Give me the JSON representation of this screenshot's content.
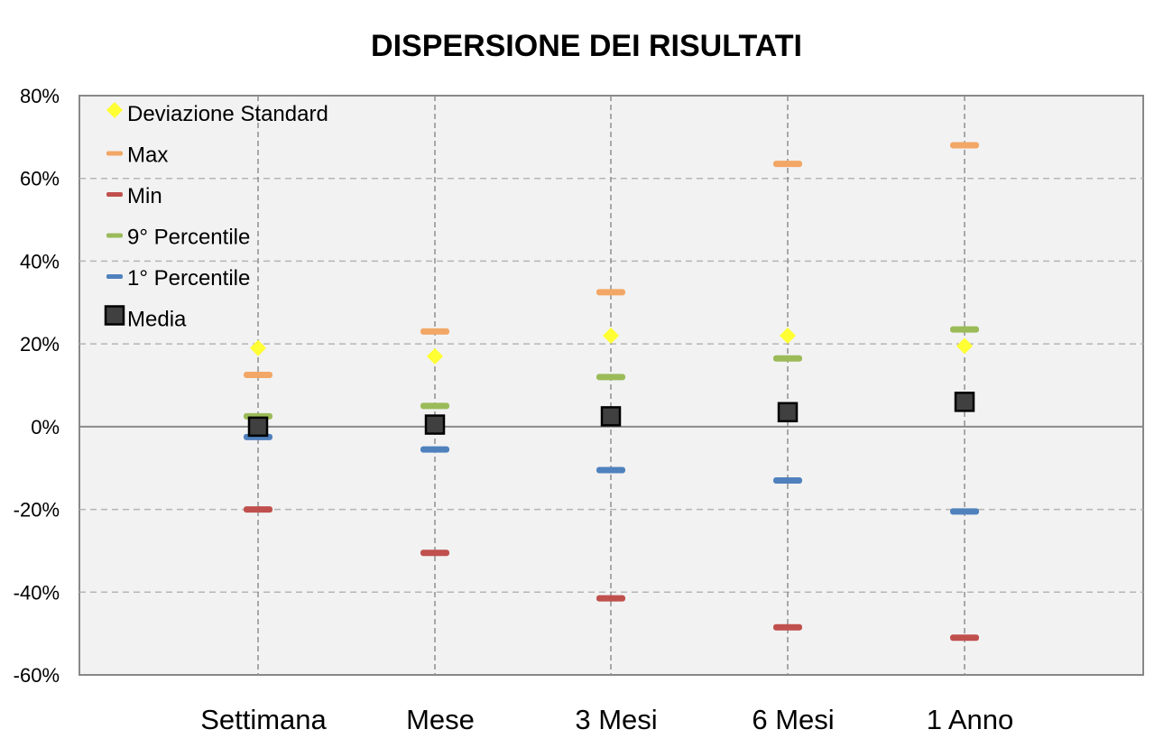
{
  "chart_data": {
    "type": "scatter",
    "title": "DISPERSIONE DEI RISULTATI",
    "xlabel": "",
    "ylabel": "",
    "categories": [
      "Settimana",
      "Mese",
      "3 Mesi",
      "6 Mesi",
      "1 Anno"
    ],
    "y_ticks": [
      "80%",
      "60%",
      "40%",
      "20%",
      "0%",
      "-20%",
      "-40%",
      "-60%"
    ],
    "ylim": [
      -60,
      80
    ],
    "y_unit": "%",
    "grid": true,
    "legend_position": "top-left",
    "series": [
      {
        "name": "Deviazione Standard",
        "marker": "diamond",
        "color": "#ffff33",
        "values": [
          19,
          17,
          22,
          22,
          19.5
        ]
      },
      {
        "name": "Max",
        "marker": "dash",
        "color": "#f2a766",
        "values": [
          12.5,
          23,
          32.5,
          63.5,
          68
        ]
      },
      {
        "name": "Min",
        "marker": "dash",
        "color": "#c0504d",
        "values": [
          -20,
          -30.5,
          -41.5,
          -48.5,
          -51
        ]
      },
      {
        "name": "9° Percentile",
        "marker": "dash",
        "color": "#9bbb59",
        "values": [
          2.5,
          5,
          12,
          16.5,
          23.5
        ]
      },
      {
        "name": "1° Percentile",
        "marker": "dash",
        "color": "#4f81bd",
        "values": [
          -2.5,
          -5.5,
          -10.5,
          -13,
          -20.5
        ]
      },
      {
        "name": "Media",
        "marker": "square",
        "color": "#404040",
        "values": [
          0,
          0.5,
          2.5,
          3.5,
          6
        ]
      }
    ]
  }
}
